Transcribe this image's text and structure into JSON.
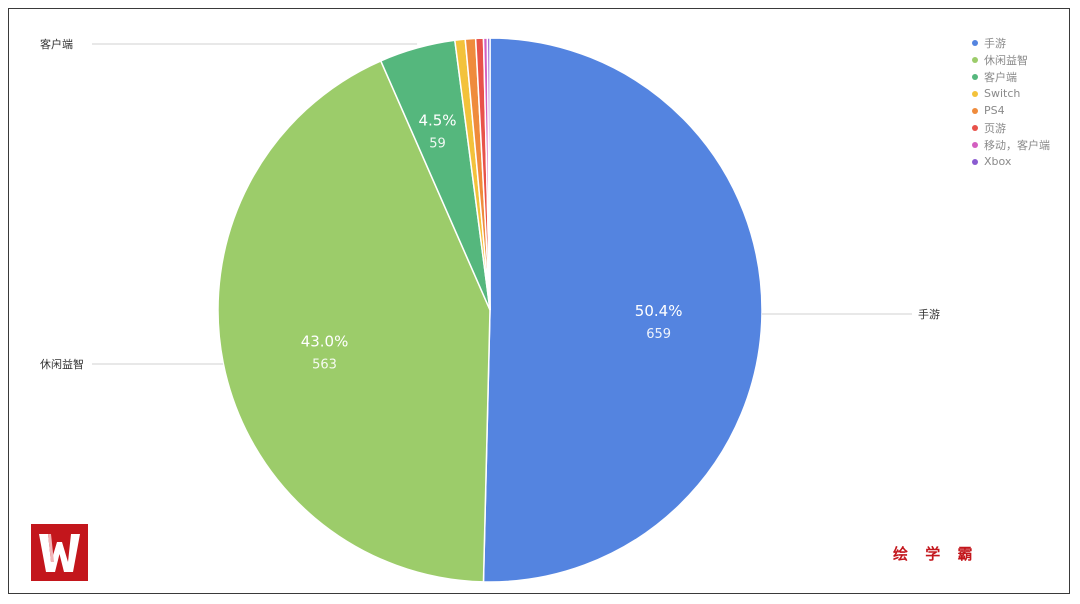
{
  "chart_data": {
    "type": "pie",
    "slices": [
      {
        "label": "手游",
        "value": 659,
        "percent": "50.4%",
        "color": "#5484e0"
      },
      {
        "label": "休闲益智",
        "value": 563,
        "percent": "43.0%",
        "color": "#9ccc6a"
      },
      {
        "label": "客户端",
        "value": 59,
        "percent": "4.5%",
        "color": "#55b77d"
      },
      {
        "label": "Switch",
        "value": 8,
        "percent": "",
        "color": "#f3c23b"
      },
      {
        "label": "PS4",
        "value": 8,
        "percent": "",
        "color": "#ef8b3c"
      },
      {
        "label": "页游",
        "value": 6,
        "percent": "",
        "color": "#e8524a"
      },
      {
        "label": "移动，客户端",
        "value": 3,
        "percent": "",
        "color": "#d35fc0"
      },
      {
        "label": "Xbox",
        "value": 2,
        "percent": "",
        "color": "#8a5bd0"
      }
    ],
    "legend_position": "top-right",
    "callouts": [
      "客户端",
      "休闲益智",
      "手游"
    ]
  },
  "watermark": "绘 学 霸",
  "logo": "logo-w-icon"
}
